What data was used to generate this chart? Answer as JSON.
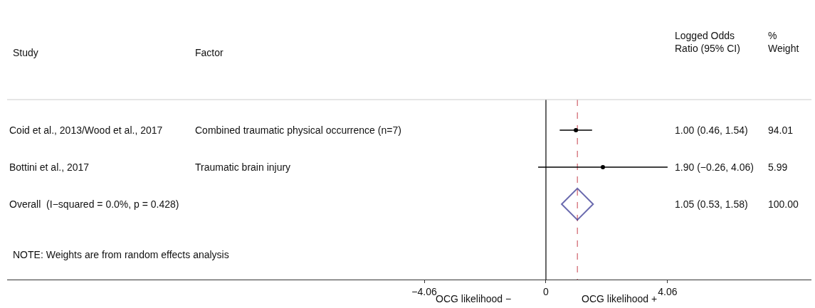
{
  "chart_data": {
    "type": "scatter",
    "orientation": "horizontal",
    "categories": [
      "Coid et al., 2013/Wood et al., 2017",
      "Bottini et al., 2017",
      "Overall  (I−squared = 0.0%, p = 0.428)"
    ],
    "series": [
      {
        "color": "#000000",
        "marker": "circle",
        "values": [
          1.0,
          1.9,
          null
        ],
        "errors": [
          [
            0.46,
            1.54
          ],
          [
            -0.26,
            4.06
          ],
          null
        ]
      },
      {
        "color": "#2b2b8c",
        "marker": "diamond",
        "values": [
          null,
          null,
          1.05
        ]
      }
    ],
    "xlim": [
      -17.98,
      8.86
    ],
    "xticks": [
      -4.06,
      0,
      4.06
    ],
    "ref_lines": [
      {
        "axis": "x",
        "value": 0,
        "color": "#000000"
      },
      {
        "axis": "x",
        "value": 1.05,
        "color": "#d0606a",
        "line_style": "dashed"
      }
    ],
    "grid": false,
    "annotations": [
      "Study",
      "Factor",
      "Logged Odds\nRatio (95% CI)",
      "%\nWeight",
      "NOTE: Weights are from random effects analysis",
      "OCG likelihood −",
      "OCG likelihood +",
      "Combined traumatic physical occurrence (n=7)",
      "Traumatic brain injury",
      "1.00 (0.46, 1.54)",
      "1.90 (−0.26, 4.06)",
      "1.05 (0.53, 1.58)",
      "94.01",
      "5.99",
      "100.00"
    ]
  }
}
